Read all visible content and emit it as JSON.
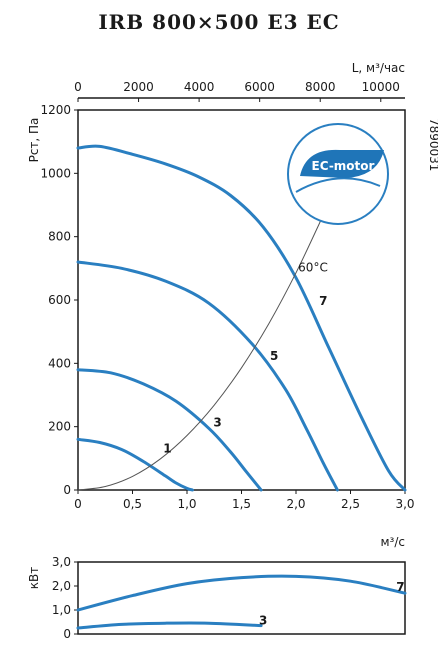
{
  "title": "IRB 800×500 E3 EC",
  "code": "7890031",
  "badge": {
    "text": "EC-motor",
    "color": "#1f75b8"
  },
  "colors": {
    "curve": "#2a7fc1",
    "system": "#555555",
    "axis": "#1a1a1a"
  },
  "chart_data": [
    {
      "type": "line",
      "xlabel": "м³/с",
      "ylabel": "Pст, Па",
      "x2label": "L, м³/час",
      "xlim": [
        0,
        3.0
      ],
      "ylim": [
        0,
        1200
      ],
      "x2lim": [
        0,
        10800
      ],
      "xticks": [
        "0",
        "0,5",
        "1,0",
        "1,5",
        "2,0",
        "2,5",
        "3,0"
      ],
      "yticks": [
        "0",
        "200",
        "400",
        "600",
        "800",
        "1000",
        "1200"
      ],
      "x2ticks": [
        "0",
        "2000",
        "4000",
        "6000",
        "8000",
        "10000"
      ],
      "annotation": "60°C",
      "series": [
        {
          "name": "1",
          "x": [
            0,
            0.2,
            0.4,
            0.6,
            0.8,
            0.9,
            1.0,
            1.05
          ],
          "y": [
            160,
            150,
            128,
            90,
            45,
            22,
            5,
            0
          ]
        },
        {
          "name": "3",
          "x": [
            0,
            0.3,
            0.6,
            0.9,
            1.2,
            1.4,
            1.55,
            1.68
          ],
          "y": [
            380,
            370,
            335,
            280,
            195,
            120,
            55,
            0
          ]
        },
        {
          "name": "5",
          "x": [
            0,
            0.4,
            0.8,
            1.2,
            1.6,
            1.9,
            2.1,
            2.25,
            2.38
          ],
          "y": [
            720,
            700,
            660,
            590,
            460,
            320,
            190,
            85,
            0
          ]
        },
        {
          "name": "7",
          "x": [
            0,
            0.2,
            0.5,
            0.8,
            1.1,
            1.4,
            1.7,
            2.0,
            2.3,
            2.6,
            2.85,
            3.0
          ],
          "y": [
            1080,
            1085,
            1060,
            1030,
            990,
            930,
            830,
            670,
            450,
            230,
            60,
            0
          ]
        },
        {
          "name": "system",
          "x": [
            0,
            0.25,
            0.5,
            0.75,
            1.0,
            1.25,
            1.5,
            1.75,
            2.0,
            2.25
          ],
          "y": [
            0,
            11,
            43,
            97,
            172,
            268,
            386,
            525,
            686,
            868
          ]
        }
      ]
    },
    {
      "type": "line",
      "ylabel": "кВт",
      "xlim": [
        0,
        3.0
      ],
      "ylim": [
        0,
        3.0
      ],
      "yticks": [
        "0",
        "1,0",
        "2,0",
        "3,0"
      ],
      "series": [
        {
          "name": "7",
          "x": [
            0,
            0.5,
            1.0,
            1.5,
            2.0,
            2.5,
            3.0
          ],
          "y": [
            1.0,
            1.6,
            2.1,
            2.35,
            2.4,
            2.2,
            1.7
          ]
        },
        {
          "name": "3",
          "x": [
            0,
            0.4,
            0.8,
            1.2,
            1.68
          ],
          "y": [
            0.25,
            0.4,
            0.45,
            0.45,
            0.35
          ]
        }
      ]
    }
  ]
}
